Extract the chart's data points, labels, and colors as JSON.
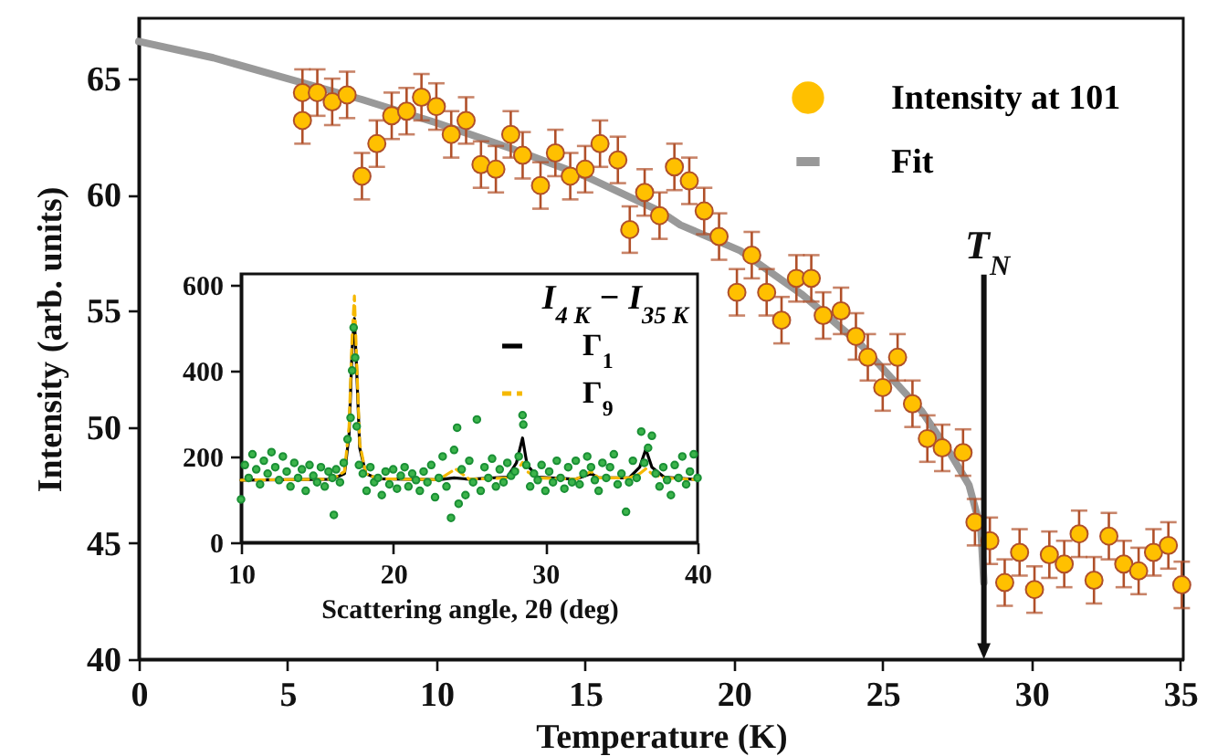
{
  "chart_data": [
    {
      "type": "scatter",
      "xlabel": "Temperature (K)",
      "ylabel": "Intensity (arb. units)",
      "xlim": [
        0,
        35.1
      ],
      "ylim": [
        40,
        67.6
      ],
      "xticks": [
        0,
        5,
        10,
        15,
        20,
        25,
        30,
        35
      ],
      "yticks": [
        40,
        45,
        50,
        55,
        60,
        65
      ],
      "grid": false,
      "legend": "top right",
      "series": [
        {
          "name": "Intensity at 101",
          "color": "#ffc000",
          "marker": "circle",
          "x": [
            5.5,
            5.5,
            6.0,
            6.5,
            7.0,
            7.5,
            8.0,
            8.5,
            9.0,
            9.5,
            10.0,
            10.5,
            11.0,
            11.5,
            12.0,
            12.5,
            12.9,
            13.5,
            14.0,
            14.5,
            15.0,
            15.5,
            16.1,
            16.5,
            17.0,
            17.5,
            18.0,
            18.5,
            19.0,
            19.5,
            20.1,
            20.6,
            21.1,
            21.6,
            22.1,
            22.6,
            23.0,
            23.6,
            24.1,
            24.5,
            25.0,
            25.5,
            26.0,
            26.5,
            27.0,
            27.7,
            28.1,
            28.6,
            29.1,
            29.6,
            30.1,
            30.6,
            31.1,
            31.6,
            32.1,
            32.6,
            33.1,
            33.6,
            34.1,
            34.6,
            35.05
          ],
          "values": [
            64.4,
            63.2,
            64.4,
            64.0,
            64.3,
            60.8,
            62.2,
            63.4,
            63.6,
            64.2,
            63.8,
            62.6,
            63.2,
            61.3,
            61.1,
            62.6,
            61.7,
            60.4,
            61.8,
            60.8,
            61.1,
            62.2,
            61.5,
            58.5,
            60.1,
            59.1,
            61.2,
            60.6,
            59.3,
            58.2,
            55.8,
            57.4,
            55.8,
            54.6,
            56.4,
            56.4,
            54.8,
            55.0,
            53.9,
            53.0,
            51.7,
            53.0,
            51.0,
            49.5,
            49.1,
            48.9,
            45.9,
            45.1,
            43.3,
            44.6,
            43.0,
            44.5,
            44.1,
            45.4,
            43.4,
            45.3,
            44.1,
            43.8,
            44.6,
            44.9,
            43.2
          ],
          "errors": [
            1,
            1,
            1,
            1,
            1,
            1,
            1,
            1,
            1,
            1,
            1,
            1,
            1,
            1,
            1,
            1,
            1,
            1,
            1,
            1,
            1,
            1,
            1,
            1,
            1,
            1,
            1,
            1,
            1,
            1,
            1,
            1,
            1,
            1,
            1,
            1,
            1,
            1,
            1,
            1,
            1,
            1,
            1,
            1,
            1,
            1,
            1,
            1,
            1,
            1,
            1,
            1,
            1,
            1,
            1,
            1,
            1,
            1,
            1,
            1,
            1
          ]
        },
        {
          "name": "Fit",
          "type": "line",
          "color": "#999999",
          "x": [
            0,
            2.5,
            5,
            7.5,
            10,
            12.5,
            15,
            17.5,
            18.2,
            20.2,
            22.3,
            24.3,
            26.3,
            27.3,
            27.9,
            28.3,
            28.4
          ],
          "values": [
            66.6,
            65.9,
            65.0,
            64.1,
            63.1,
            62.0,
            60.8,
            59.3,
            58.7,
            57.6,
            55.7,
            53.5,
            50.7,
            48.8,
            47.5,
            45.6,
            43.3
          ]
        }
      ],
      "ref_lines": [
        {
          "axis": "x",
          "value": 28.4,
          "label": "T$_{N}$",
          "color": "#111111"
        }
      ]
    },
    {
      "type": "scatter",
      "xlabel": "Scattering angle, 2θ (deg)",
      "legend_title": "I$_{4 K}$ − I$_{35 K}$",
      "xlim": [
        10,
        40
      ],
      "ylim": [
        0,
        625
      ],
      "xticks": [
        10,
        20,
        30,
        40
      ],
      "yticks": [
        0,
        200,
        400,
        600
      ],
      "grid": false,
      "legend": "top right",
      "series": [
        {
          "color": "#3cb44b",
          "marker": "circle",
          "x": [
            10,
            10.25,
            10.5,
            10.75,
            11,
            11.25,
            11.5,
            11.75,
            12,
            12.25,
            12.5,
            12.75,
            13,
            13.25,
            13.5,
            13.75,
            14,
            14.25,
            14.5,
            14.75,
            15,
            15.25,
            15.5,
            15.75,
            16,
            16.1,
            16.25,
            16.5,
            16.75,
            17,
            17.2,
            17.3,
            17.4,
            17.5,
            17.6,
            17.75,
            18,
            18.25,
            18.5,
            18.75,
            19,
            19.25,
            19.5,
            19.75,
            20,
            20.25,
            20.5,
            20.75,
            21,
            21.25,
            21.5,
            21.75,
            22,
            22.25,
            22.5,
            22.75,
            23,
            23.25,
            23.5,
            23.8,
            24,
            24.2,
            24.3,
            24.5,
            24.75,
            25,
            25.25,
            25.5,
            25.75,
            26,
            26.25,
            26.5,
            26.75,
            27,
            27.25,
            27.5,
            27.75,
            28,
            28.25,
            28.5,
            28.55,
            28.75,
            29,
            29.25,
            29.5,
            29.75,
            30,
            30.25,
            30.5,
            30.75,
            31,
            31.25,
            31.5,
            31.75,
            32,
            32.25,
            32.5,
            32.75,
            33,
            33.25,
            33.5,
            33.75,
            34,
            34.25,
            34.5,
            34.75,
            35,
            35.3,
            35.5,
            35.75,
            36,
            36.3,
            36.5,
            36.75,
            37,
            37.25,
            37.5,
            37.75,
            38,
            38.25,
            38.5,
            38.75,
            39,
            39.25,
            39.5,
            39.75,
            40
          ],
          "values": [
            100,
            180,
            150,
            205,
            170,
            135,
            190,
            160,
            210,
            175,
            145,
            200,
            165,
            130,
            185,
            150,
            170,
            120,
            180,
            155,
            140,
            175,
            130,
            165,
            150,
            64,
            170,
            140,
            185,
            240,
            290,
            400,
            500,
            430,
            270,
            180,
            160,
            120,
            175,
            140,
            150,
            110,
            165,
            135,
            170,
            125,
            155,
            175,
            130,
            160,
            145,
            120,
            165,
            140,
            180,
            105,
            150,
            200,
            130,
            57,
            215,
            267,
            90,
            170,
            110,
            190,
            140,
            286,
            120,
            175,
            150,
            195,
            130,
            170,
            140,
            185,
            155,
            165,
            200,
            296,
            274,
            180,
            130,
            160,
            145,
            180,
            120,
            165,
            140,
            190,
            150,
            125,
            175,
            140,
            190,
            135,
            160,
            200,
            175,
            145,
            120,
            185,
            150,
            175,
            205,
            135,
            160,
            71,
            140,
            190,
            150,
            258,
            185,
            220,
            248,
            160,
            130,
            175,
            145,
            110,
            180,
            150,
            200,
            135,
            165,
            205,
            150
          ]
        },
        {
          "name": "Γ$_{1}$",
          "type": "line",
          "color": "#000000",
          "line_style": "solid",
          "x": [
            10,
            16,
            16.8,
            17.1,
            17.3,
            17.45,
            17.6,
            17.8,
            18.2,
            19,
            23,
            24,
            25,
            27.5,
            28.1,
            28.5,
            28.8,
            29.5,
            32,
            33,
            33.5,
            35.5,
            36.2,
            36.6,
            37,
            37.8,
            40
          ],
          "values": [
            145,
            147,
            160,
            250,
            450,
            521,
            400,
            220,
            160,
            148,
            146,
            150,
            147,
            152,
            185,
            243,
            180,
            152,
            147,
            160,
            150,
            150,
            175,
            217,
            175,
            152,
            146
          ]
        },
        {
          "name": "Γ$_{9}$",
          "type": "line",
          "color": "#f5b800",
          "line_style": "dashed",
          "x": [
            10,
            16,
            16.8,
            17.1,
            17.3,
            17.45,
            17.6,
            17.8,
            18.2,
            19,
            23,
            24.1,
            25,
            27.5,
            28.1,
            28.5,
            28.8,
            29.5,
            32,
            33,
            33.5,
            35.5,
            36.2,
            36.6,
            37,
            37.8,
            40
          ],
          "values": [
            145,
            147,
            165,
            270,
            480,
            574,
            420,
            230,
            160,
            148,
            146,
            171,
            147,
            150,
            165,
            186,
            165,
            150,
            147,
            165,
            150,
            150,
            160,
            171,
            160,
            150,
            146
          ]
        }
      ]
    }
  ]
}
